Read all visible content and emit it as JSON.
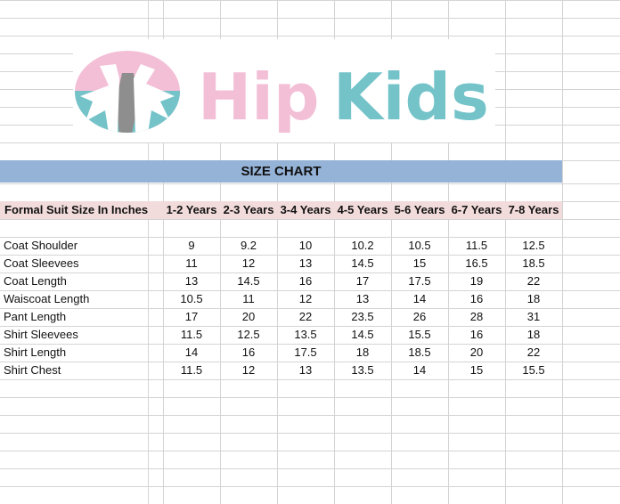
{
  "logo": {
    "text_part1": "Hip",
    "text_part2": "Kids",
    "colors": {
      "pink": "#f3bfd6",
      "teal": "#73c3c9",
      "gray": "#8e8e8e"
    }
  },
  "banner": {
    "title": "SIZE CHART",
    "color": "#95b3d7"
  },
  "table": {
    "corner_label": "Formal Suit Size In Inches",
    "header_color": "#f2dcdb",
    "columns": [
      "1-2 Years",
      "2-3 Years",
      "3-4 Years",
      "4-5 Years",
      "5-6 Years",
      "6-7 Years",
      "7-8 Years"
    ],
    "rows": [
      {
        "label": "Coat Shoulder",
        "values": [
          "9",
          "9.2",
          "10",
          "10.2",
          "10.5",
          "11.5",
          "12.5"
        ]
      },
      {
        "label": "Coat Sleevees",
        "values": [
          "11",
          "12",
          "13",
          "14.5",
          "15",
          "16.5",
          "18.5"
        ]
      },
      {
        "label": "Coat Length",
        "values": [
          "13",
          "14.5",
          "16",
          "17",
          "17.5",
          "19",
          "22"
        ]
      },
      {
        "label": "Waiscoat Length",
        "values": [
          "10.5",
          "11",
          "12",
          "13",
          "14",
          "16",
          "18"
        ]
      },
      {
        "label": "Pant Length",
        "values": [
          "17",
          "20",
          "22",
          "23.5",
          "26",
          "28",
          "31"
        ]
      },
      {
        "label": "Shirt Sleevees",
        "values": [
          "11.5",
          "12.5",
          "13.5",
          "14.5",
          "15.5",
          "16",
          "18"
        ]
      },
      {
        "label": "Shirt Length",
        "values": [
          "14",
          "16",
          "17.5",
          "18",
          "18.5",
          "20",
          "22"
        ]
      },
      {
        "label": "Shirt Chest",
        "values": [
          "11.5",
          "12",
          "13",
          "13.5",
          "14",
          "15",
          "15.5"
        ]
      }
    ]
  }
}
